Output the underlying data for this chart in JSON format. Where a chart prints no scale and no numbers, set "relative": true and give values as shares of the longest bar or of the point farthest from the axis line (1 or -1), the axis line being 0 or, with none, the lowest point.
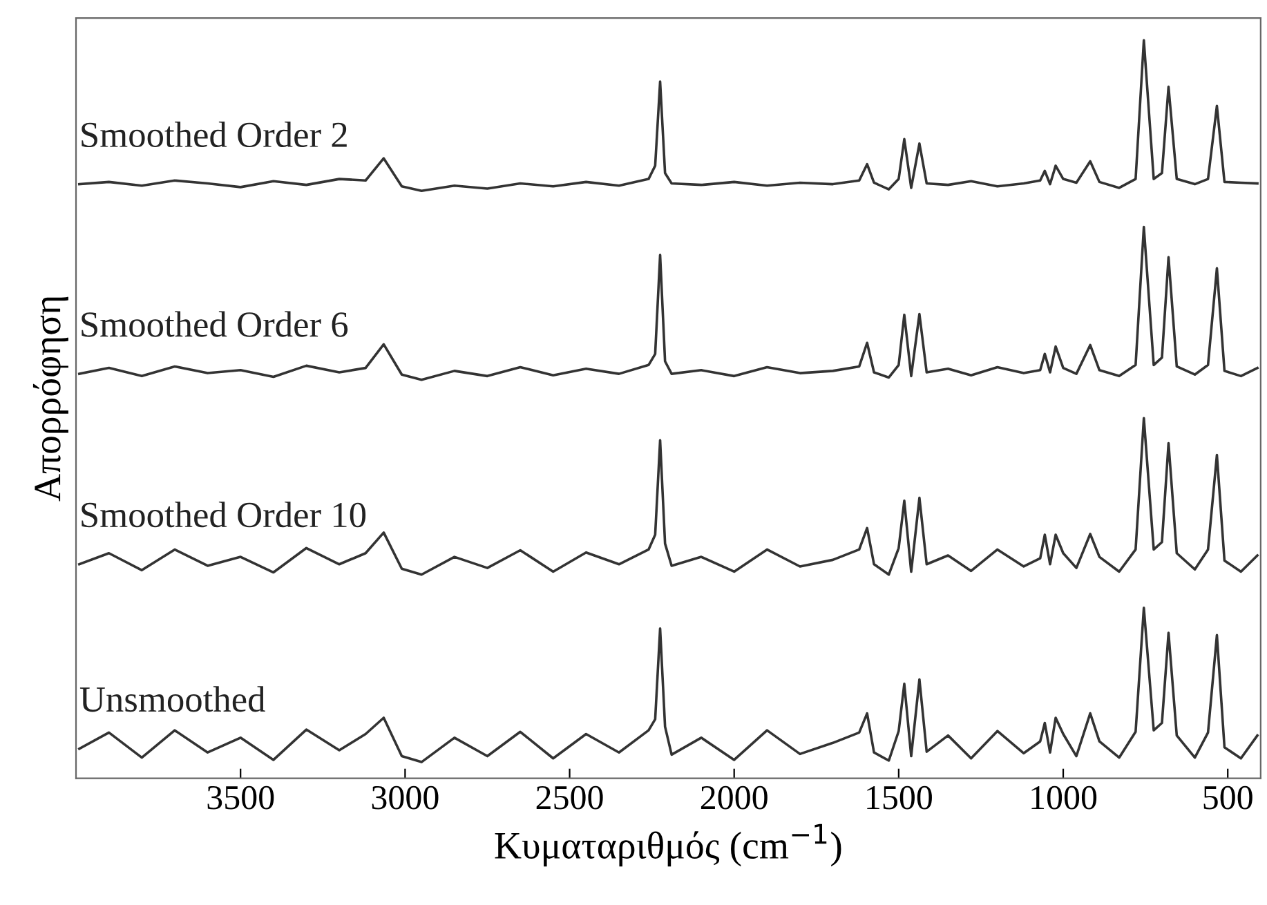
{
  "chart_data": {
    "type": "line",
    "relative": true,
    "xlabel": "Κυματαριθμός (cm$^{−1}$)",
    "ylabel": "Απορρόφηση",
    "xlim": [
      4000,
      400
    ],
    "xticks": [
      3500,
      3000,
      2500,
      2000,
      1500,
      1000,
      500
    ],
    "grid": false,
    "legend": false,
    "marker": "none",
    "line_style": "solid",
    "x": [
      3990,
      3900,
      3800,
      3700,
      3600,
      3500,
      3400,
      3300,
      3200,
      3120,
      3065,
      3010,
      2950,
      2850,
      2750,
      2650,
      2550,
      2450,
      2350,
      2260,
      2240,
      2225,
      2210,
      2190,
      2100,
      2000,
      1900,
      1800,
      1700,
      1620,
      1596,
      1575,
      1530,
      1500,
      1483,
      1462,
      1437,
      1415,
      1350,
      1280,
      1200,
      1120,
      1070,
      1056,
      1040,
      1023,
      1000,
      960,
      918,
      890,
      830,
      780,
      755,
      725,
      700,
      680,
      655,
      600,
      560,
      533,
      510,
      460,
      410
    ],
    "series": [
      {
        "name": "Smoothed Order 2",
        "color": "#333333",
        "values": [
          0.805,
          0.808,
          0.803,
          0.81,
          0.806,
          0.801,
          0.809,
          0.804,
          0.812,
          0.81,
          0.84,
          0.802,
          0.796,
          0.803,
          0.799,
          0.806,
          0.802,
          0.808,
          0.803,
          0.812,
          0.83,
          0.944,
          0.82,
          0.806,
          0.804,
          0.808,
          0.803,
          0.807,
          0.805,
          0.81,
          0.832,
          0.807,
          0.798,
          0.812,
          0.866,
          0.8,
          0.86,
          0.806,
          0.804,
          0.809,
          0.802,
          0.806,
          0.81,
          0.823,
          0.805,
          0.83,
          0.812,
          0.807,
          0.836,
          0.808,
          0.8,
          0.812,
          1.0,
          0.812,
          0.82,
          0.937,
          0.812,
          0.805,
          0.812,
          0.911,
          0.808,
          0.807,
          0.806
        ]
      },
      {
        "name": "Smoothed Order 6",
        "color": "#333333",
        "values": [
          0.548,
          0.556,
          0.545,
          0.558,
          0.549,
          0.553,
          0.544,
          0.559,
          0.55,
          0.556,
          0.588,
          0.547,
          0.54,
          0.552,
          0.545,
          0.557,
          0.546,
          0.555,
          0.548,
          0.56,
          0.575,
          0.709,
          0.565,
          0.548,
          0.553,
          0.545,
          0.557,
          0.549,
          0.552,
          0.558,
          0.59,
          0.55,
          0.543,
          0.56,
          0.628,
          0.545,
          0.629,
          0.55,
          0.555,
          0.546,
          0.557,
          0.549,
          0.553,
          0.575,
          0.55,
          0.585,
          0.556,
          0.548,
          0.587,
          0.553,
          0.545,
          0.56,
          0.747,
          0.56,
          0.57,
          0.706,
          0.558,
          0.547,
          0.56,
          0.691,
          0.552,
          0.545,
          0.556
        ]
      },
      {
        "name": "Smoothed Order 10",
        "color": "#333333",
        "values": [
          0.29,
          0.305,
          0.282,
          0.31,
          0.288,
          0.3,
          0.279,
          0.312,
          0.29,
          0.305,
          0.333,
          0.284,
          0.276,
          0.3,
          0.285,
          0.309,
          0.28,
          0.306,
          0.29,
          0.31,
          0.33,
          0.458,
          0.318,
          0.288,
          0.3,
          0.28,
          0.31,
          0.287,
          0.296,
          0.31,
          0.339,
          0.29,
          0.276,
          0.312,
          0.376,
          0.28,
          0.38,
          0.29,
          0.302,
          0.281,
          0.31,
          0.287,
          0.298,
          0.33,
          0.29,
          0.33,
          0.305,
          0.285,
          0.331,
          0.3,
          0.28,
          0.31,
          0.488,
          0.31,
          0.32,
          0.454,
          0.305,
          0.283,
          0.31,
          0.438,
          0.295,
          0.28,
          0.302
        ]
      },
      {
        "name": "Unsmoothed",
        "color": "#333333",
        "values": [
          0.04,
          0.062,
          0.028,
          0.065,
          0.035,
          0.055,
          0.025,
          0.066,
          0.038,
          0.06,
          0.082,
          0.03,
          0.022,
          0.055,
          0.03,
          0.063,
          0.027,
          0.06,
          0.035,
          0.065,
          0.08,
          0.203,
          0.07,
          0.032,
          0.055,
          0.025,
          0.065,
          0.033,
          0.048,
          0.062,
          0.088,
          0.035,
          0.024,
          0.064,
          0.128,
          0.03,
          0.134,
          0.036,
          0.058,
          0.027,
          0.064,
          0.034,
          0.05,
          0.075,
          0.035,
          0.082,
          0.06,
          0.03,
          0.088,
          0.05,
          0.028,
          0.063,
          0.231,
          0.065,
          0.075,
          0.197,
          0.058,
          0.028,
          0.062,
          0.194,
          0.042,
          0.027,
          0.058
        ]
      }
    ]
  }
}
